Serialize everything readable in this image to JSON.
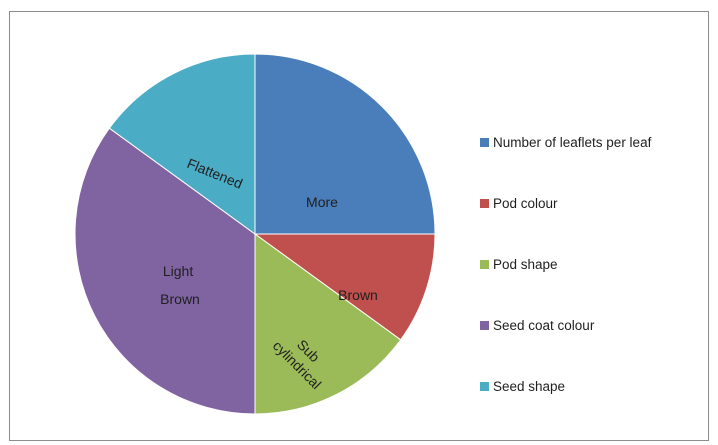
{
  "chart_data": {
    "type": "pie",
    "title": "",
    "start_angle_deg": -90,
    "direction": "clockwise",
    "legend_position": "right",
    "slices": [
      {
        "legend": "Number of leaflets per leaf",
        "label": "More",
        "value": 25,
        "color": "#4a7ebb"
      },
      {
        "legend": "Pod colour",
        "label": "Brown",
        "value": 10,
        "color": "#c0504d"
      },
      {
        "legend": "Pod shape",
        "label": "Sub cylindrical",
        "value": 15,
        "color": "#9bbb59"
      },
      {
        "legend": "Seed coat colour",
        "label": "Light Brown",
        "value": 35,
        "color": "#8064a2"
      },
      {
        "legend": "Seed shape",
        "label": "Flattened",
        "value": 15,
        "color": "#4bacc6"
      }
    ]
  }
}
